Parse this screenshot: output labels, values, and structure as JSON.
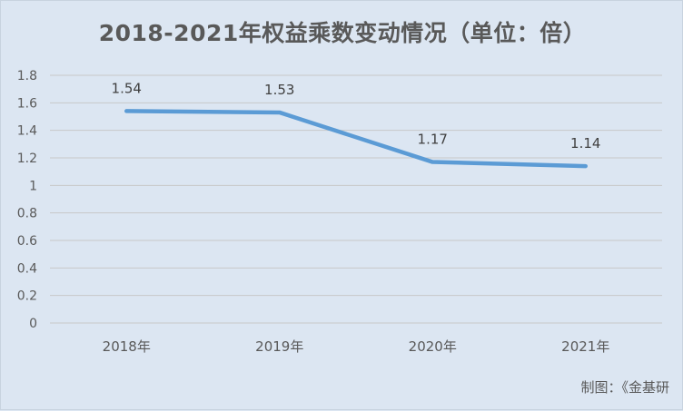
{
  "chart_data": {
    "type": "line",
    "title": "2018-2021年权益乘数变动情况（单位：倍）",
    "categories": [
      "2018年",
      "2019年",
      "2020年",
      "2021年"
    ],
    "series": [
      {
        "values": [
          1.54,
          1.53,
          1.17,
          1.14
        ],
        "color": "#5b9bd5"
      }
    ],
    "data_labels": [
      "1.54",
      "1.53",
      "1.17",
      "1.14"
    ],
    "y_ticks": [
      "0",
      "0.2",
      "0.4",
      "0.6",
      "0.8",
      "1",
      "1.2",
      "1.4",
      "1.6",
      "1.8"
    ],
    "ylim": [
      0,
      1.8
    ],
    "grid": true,
    "legend": "none",
    "source": "制图：《金基研"
  }
}
